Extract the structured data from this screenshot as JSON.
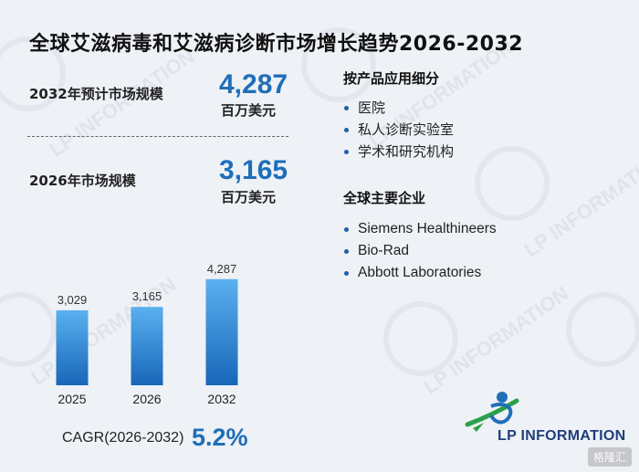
{
  "title": "全球艾滋病毒和艾滋病诊断市场增长趋势2026-2032",
  "forecast": {
    "label": "2032年预计市场规模",
    "value": "4,287",
    "unit": "百万美元"
  },
  "current": {
    "label": "2026年市场规模",
    "value": "3,165",
    "unit": "百万美元"
  },
  "segments": {
    "heading": "按产品应用细分",
    "items": [
      "医院",
      "私人诊断实验室",
      "学术和研究机构"
    ]
  },
  "companies": {
    "heading": "全球主要企业",
    "items": [
      "Siemens Healthineers",
      "Bio-Rad",
      "Abbott Laboratories"
    ]
  },
  "cagr": {
    "label": "CAGR(2026-2032)",
    "value": "5.2%"
  },
  "logo": {
    "text": "LP INFORMATION"
  },
  "watermark_text": "LP INFORMATION",
  "source_badge": "格隆汇",
  "colors": {
    "accent": "#1f6fb8",
    "bar_top": "#5ab0f0",
    "bar_bottom": "#1767b8",
    "logo_green": "#2aa04a"
  },
  "chart_data": {
    "type": "bar",
    "categories": [
      "2025",
      "2026",
      "2032"
    ],
    "values": [
      3029,
      3165,
      4287
    ],
    "value_labels": [
      "3,029",
      "3,165",
      "4,287"
    ],
    "title": "",
    "xlabel": "",
    "ylabel": "",
    "ylim": [
      0,
      4500
    ],
    "grid": false,
    "legend": "none"
  }
}
